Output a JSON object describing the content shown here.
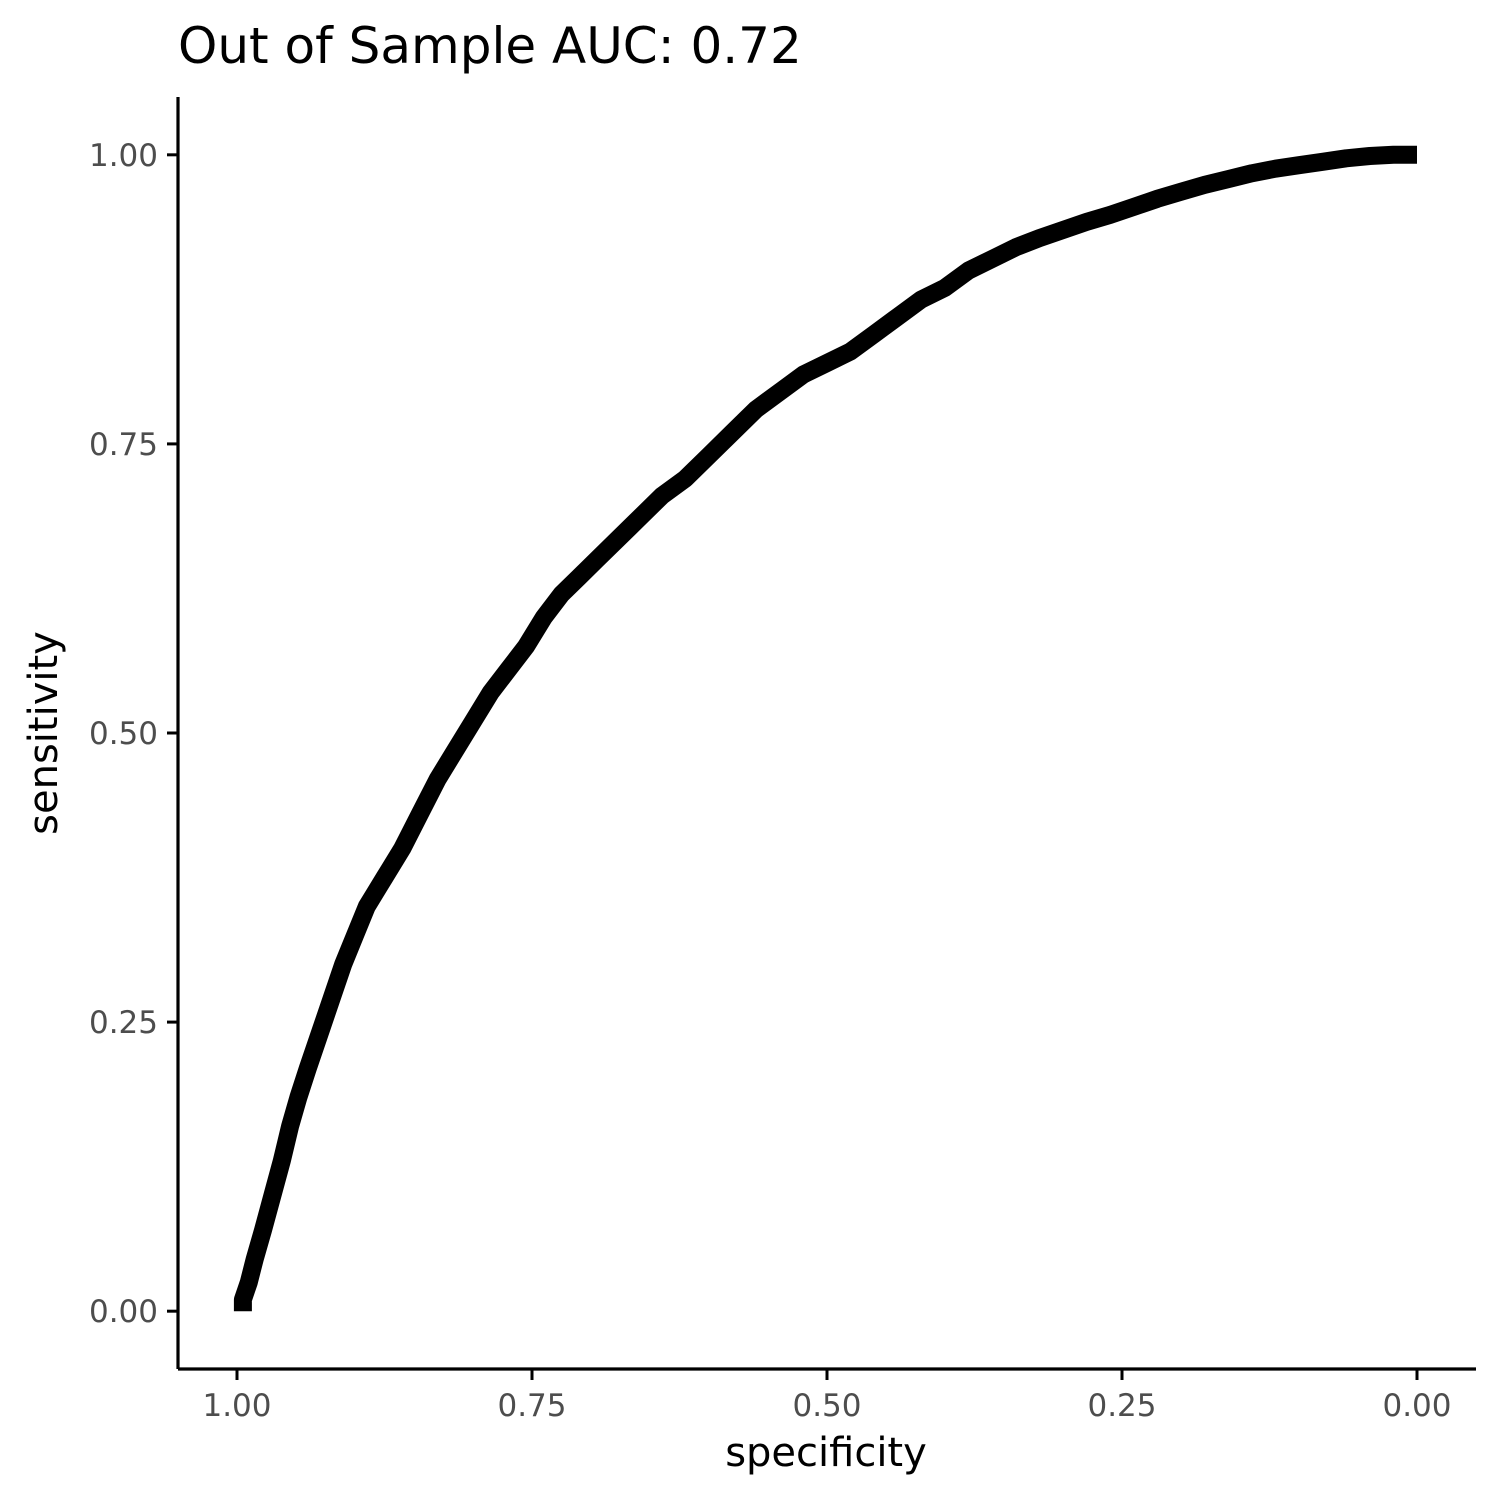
{
  "chart_data": {
    "type": "line",
    "title": "Out of Sample AUC: 0.72",
    "xlabel": "specificity",
    "ylabel": "sensitivity",
    "x_reversed": true,
    "xlim": [
      1.05,
      -0.05
    ],
    "ylim": [
      -0.05,
      1.05
    ],
    "x_ticks": [
      1.0,
      0.75,
      0.5,
      0.25,
      0.0
    ],
    "x_tick_labels": [
      "1.00",
      "0.75",
      "0.50",
      "0.25",
      "0.00"
    ],
    "y_ticks": [
      0.0,
      0.25,
      0.5,
      0.75,
      1.0
    ],
    "y_tick_labels": [
      "0.00",
      "0.25",
      "0.50",
      "0.75",
      "1.00"
    ],
    "grid": false,
    "line_color": "#000000",
    "series": [
      {
        "x": [
          0.995,
          0.995,
          0.99,
          0.985,
          0.978,
          0.97,
          0.962,
          0.955,
          0.948,
          0.94,
          0.93,
          0.92,
          0.91,
          0.9,
          0.89,
          0.875,
          0.86,
          0.845,
          0.83,
          0.815,
          0.8,
          0.785,
          0.77,
          0.755,
          0.74,
          0.725,
          0.71,
          0.695,
          0.68,
          0.66,
          0.64,
          0.62,
          0.6,
          0.58,
          0.56,
          0.54,
          0.52,
          0.5,
          0.48,
          0.46,
          0.44,
          0.42,
          0.4,
          0.38,
          0.36,
          0.34,
          0.32,
          0.3,
          0.28,
          0.26,
          0.24,
          0.22,
          0.2,
          0.18,
          0.16,
          0.14,
          0.12,
          0.1,
          0.08,
          0.06,
          0.04,
          0.02,
          0.0
        ],
        "y": [
          0.0,
          0.01,
          0.025,
          0.045,
          0.07,
          0.1,
          0.13,
          0.16,
          0.185,
          0.21,
          0.24,
          0.27,
          0.3,
          0.325,
          0.35,
          0.375,
          0.4,
          0.43,
          0.46,
          0.485,
          0.51,
          0.535,
          0.555,
          0.575,
          0.6,
          0.62,
          0.635,
          0.65,
          0.665,
          0.685,
          0.705,
          0.72,
          0.74,
          0.76,
          0.78,
          0.795,
          0.81,
          0.82,
          0.83,
          0.845,
          0.86,
          0.875,
          0.885,
          0.9,
          0.91,
          0.92,
          0.928,
          0.935,
          0.942,
          0.948,
          0.955,
          0.962,
          0.968,
          0.974,
          0.979,
          0.984,
          0.988,
          0.991,
          0.994,
          0.997,
          0.999,
          1.0,
          1.0
        ]
      }
    ]
  }
}
